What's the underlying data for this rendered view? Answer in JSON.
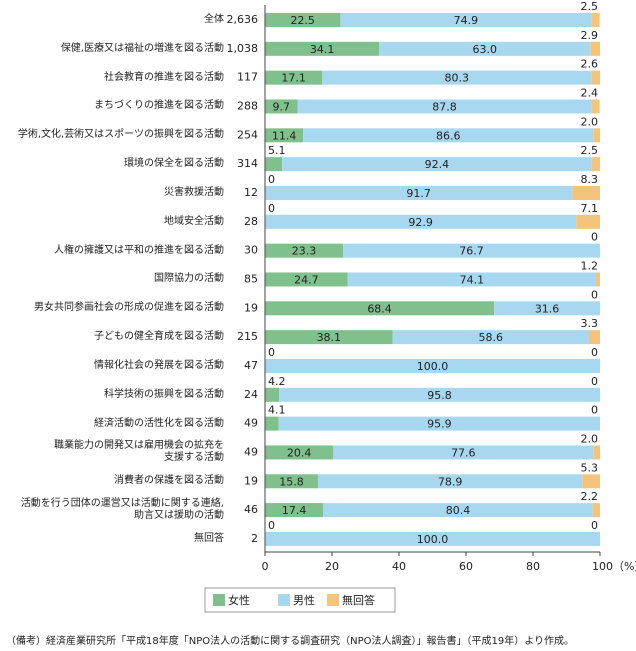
{
  "chart_data": {
    "type": "stacked-bar-horizontal",
    "categories": [
      "全体",
      "保健,医療又は福祉の増進を図る活動",
      "社会教育の推進を図る活動",
      "まちづくりの推進を図る活動",
      "学術,文化,芸術又はスポーツの振興を図る活動",
      "環境の保全を図る活動",
      "災害救援活動",
      "地域安全活動",
      "人権の擁護又は平和の推進を図る活動",
      "国際協力の活動",
      "男女共同参画社会の形成の促進を図る活動",
      "子どもの健全育成を図る活動",
      "情報化社会の発展を図る活動",
      "科学技術の振興を図る活動",
      "経済活動の活性化を図る活動",
      "職業能力の開発又は雇用機会の拡充を\n支援する活動",
      "消費者の保護を図る活動",
      "活動を行う団体の運営又は活動に関する連絡,\n助言又は援助の活動",
      "無回答"
    ],
    "counts": [
      "2,636",
      "1,038",
      "117",
      "288",
      "254",
      "314",
      "12",
      "28",
      "30",
      "85",
      "19",
      "215",
      "47",
      "24",
      "49",
      "49",
      "19",
      "46",
      "2"
    ],
    "series": [
      {
        "name": "女性",
        "color": "#7fc08c",
        "values": [
          22.5,
          34.1,
          17.1,
          9.7,
          11.4,
          5.1,
          0,
          0,
          23.3,
          24.7,
          68.4,
          38.1,
          0,
          4.2,
          4.1,
          20.4,
          15.8,
          17.4,
          0
        ],
        "value_labels": [
          "22.5",
          "34.1",
          "17.1",
          "9.7",
          "11.4",
          "5.1",
          "0",
          "0",
          "23.3",
          "24.7",
          "68.4",
          "38.1",
          "0",
          "4.2",
          "4.1",
          "20.4",
          "15.8",
          "17.4",
          "0"
        ]
      },
      {
        "name": "男性",
        "color": "#a8d8f0",
        "values": [
          74.9,
          63.0,
          80.3,
          87.8,
          86.6,
          92.4,
          91.7,
          92.9,
          76.7,
          74.1,
          31.6,
          58.6,
          100.0,
          95.8,
          95.9,
          77.6,
          78.9,
          80.4,
          100.0
        ],
        "value_labels": [
          "74.9",
          "63.0",
          "80.3",
          "87.8",
          "86.6",
          "92.4",
          "91.7",
          "92.9",
          "76.7",
          "74.1",
          "31.6",
          "58.6",
          "100.0",
          "95.8",
          "95.9",
          "77.6",
          "78.9",
          "80.4",
          "100.0"
        ]
      },
      {
        "name": "無回答",
        "color": "#f5c47c",
        "values": [
          2.5,
          2.9,
          2.6,
          2.4,
          2.0,
          2.5,
          8.3,
          7.1,
          0,
          1.2,
          0,
          3.3,
          0,
          0,
          0,
          2.0,
          5.3,
          2.2,
          0
        ],
        "value_labels": [
          "2.5",
          "2.9",
          "2.6",
          "2.4",
          "2.0",
          "2.5",
          "8.3",
          "7.1",
          "0",
          "1.2",
          "0",
          "3.3",
          "0",
          "0",
          "0",
          "2.0",
          "5.3",
          "2.2",
          "0"
        ]
      }
    ],
    "xlim": [
      0,
      100
    ],
    "xticks": [
      0,
      20,
      40,
      60,
      80,
      {
        "value": 100,
        "label": "100（%）"
      }
    ],
    "note": "（備考）経済産業研究所「平成18年度「NPO法人の活動に関する調査研究（NPO法人調査）」報告書」（平成19年）より作成。"
  }
}
